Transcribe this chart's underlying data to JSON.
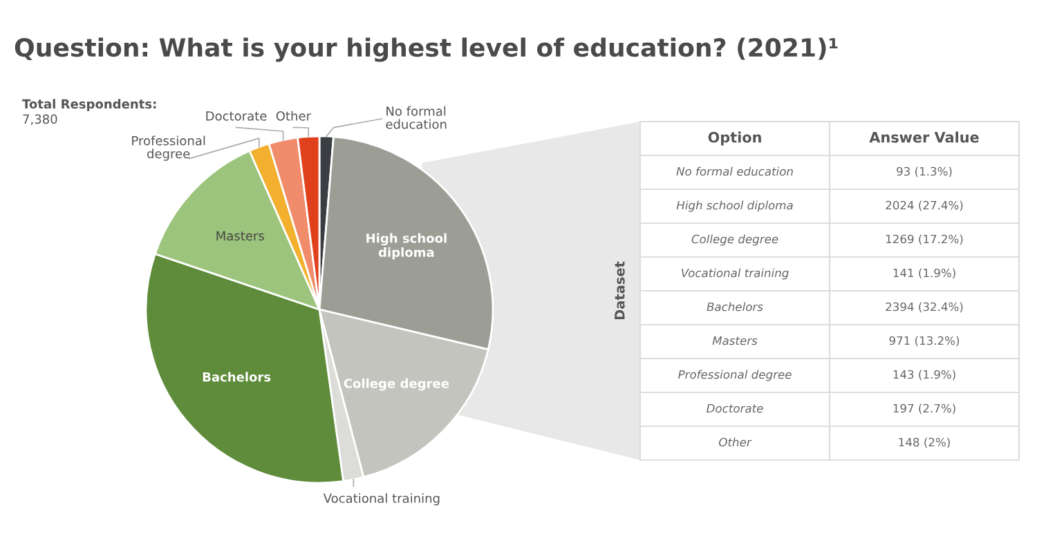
{
  "chart_data": [
    {
      "type": "pie",
      "title": "Question: What is your highest level of education? (2021)¹",
      "categories": [
        "No formal education",
        "High school diploma",
        "College degree",
        "Vocational training",
        "Bachelors",
        "Masters",
        "Professional degree",
        "Doctorate",
        "Other"
      ],
      "values": [
        1.3,
        27.4,
        17.2,
        1.9,
        32.4,
        13.2,
        1.9,
        2.7,
        2
      ],
      "colors": [
        "#3a3d42",
        "#9c9e96",
        "#c3c4bd",
        "#dcdcd8",
        "#5e8c3a",
        "#9dc47c",
        "#f2b02e",
        "#f08c6c",
        "#e0401c"
      ],
      "annotations": [
        "Total Respondents:",
        "7,380"
      ],
      "legend": false
    },
    {
      "type": "other",
      "annotations": [
        "Dataset",
        "Option",
        "Answer Value",
        "No formal education",
        "93 (1.3%)",
        "High school diploma",
        "2024 (27.4%)",
        "College degree",
        "1269 (17.2%)",
        "Vocational training",
        "141 (1.9%)",
        "Bachelors",
        "2394 (32.4%)",
        "Masters",
        "971 (13.2%)",
        "Professional degree",
        "143 (1.9%)",
        "Doctorate",
        "197 (2.7%)",
        "Other",
        "148 (2%)"
      ]
    }
  ]
}
